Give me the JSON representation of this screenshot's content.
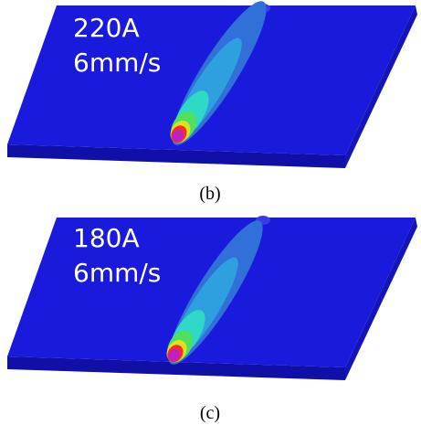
{
  "panels": [
    {
      "current": "220A",
      "speed": "6mm/s",
      "caption": "(b)"
    },
    {
      "current": "180A",
      "speed": "6mm/s",
      "caption": "(c)"
    }
  ]
}
